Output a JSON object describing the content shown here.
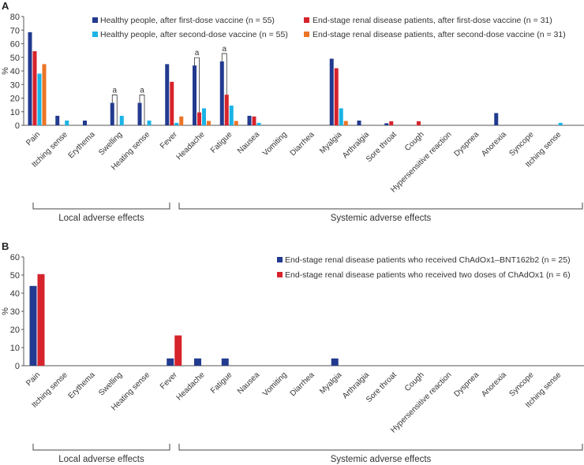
{
  "chart_data": [
    {
      "type": "bar",
      "panel_label": "A",
      "ylabel": "%",
      "ylim": [
        0,
        80
      ],
      "yticks": [
        0,
        10,
        20,
        30,
        40,
        50,
        60,
        70,
        80
      ],
      "categories": [
        "Pain",
        "Itching sense",
        "Erythema",
        "Swelling",
        "Heating sense",
        "Fever",
        "Headache",
        "Fatigue",
        "Nausea",
        "Vomiting",
        "Diarrhea",
        "Myalgia",
        "Arthralgia",
        "Sore throat",
        "Cough",
        "Hypersensitive reaction",
        "Dyspnea",
        "Anorexia",
        "Syncope",
        "Itching sense"
      ],
      "series": [
        {
          "name": "Healthy people, after first-dose vaccine (n = 55)",
          "color": "#223a8f",
          "values": [
            68.5,
            7,
            3.5,
            16.5,
            16.5,
            45,
            44,
            47,
            7,
            0,
            0,
            49,
            3.5,
            1.5,
            0,
            0,
            0,
            9,
            0,
            0
          ]
        },
        {
          "name": "End-stage renal disease patients, after first-dose vaccine (n = 31)",
          "color": "#d7232c",
          "values": [
            54.5,
            0,
            0,
            0,
            0,
            32,
            9.5,
            22.5,
            6.5,
            0,
            0,
            42,
            0,
            3,
            3,
            0,
            0,
            0,
            0,
            0
          ]
        },
        {
          "name": "Healthy people, after second-dose vaccine (n = 55)",
          "color": "#19b3e6",
          "values": [
            38,
            3.5,
            0,
            7,
            3.5,
            1.8,
            12.5,
            14.5,
            1.8,
            0,
            0,
            12.5,
            0,
            0,
            0,
            0,
            0,
            0,
            0,
            1.8
          ]
        },
        {
          "name": "End-stage renal disease patients, after second-dose vaccine (n = 31)",
          "color": "#eb7526",
          "values": [
            45,
            0,
            0,
            0,
            0,
            6.5,
            3.2,
            3.2,
            0,
            0,
            0,
            3.2,
            0,
            0,
            0,
            0,
            0,
            0,
            0,
            0
          ]
        }
      ],
      "legend": {
        "placement": "top",
        "columns": 2
      },
      "annotations": [
        {
          "label": "a",
          "category_index": 3
        },
        {
          "label": "a",
          "category_index": 4
        },
        {
          "label": "a",
          "category_index": 6
        },
        {
          "label": "a",
          "category_index": 7
        }
      ],
      "groups": [
        {
          "label": "Local adverse effects",
          "from": 0,
          "to": 4
        },
        {
          "label": "Systemic adverse effects",
          "from": 5,
          "to": 19
        }
      ]
    },
    {
      "type": "bar",
      "panel_label": "B",
      "ylabel": "%",
      "ylim": [
        0,
        60
      ],
      "yticks": [
        0,
        10,
        20,
        30,
        40,
        50,
        60
      ],
      "categories": [
        "Pain",
        "Itching sense",
        "Erythema",
        "Swelling",
        "Heating sense",
        "Fever",
        "Headache",
        "Fatigue",
        "Nausea",
        "Vomiting",
        "Diarrhea",
        "Myalgia",
        "Arthralgia",
        "Sore throat",
        "Cough",
        "Hypersensitive reaction",
        "Dyspnea",
        "Anorexia",
        "Syncope",
        "Itching sense"
      ],
      "series": [
        {
          "name": "End-stage renal disease patients who received ChAdOx1–BNT162b2 (n = 25)",
          "color": "#223a8f",
          "values": [
            44,
            0,
            0,
            0,
            0,
            4,
            4,
            4,
            0,
            0,
            0,
            4,
            0,
            0,
            0,
            0,
            0,
            0,
            0,
            0
          ]
        },
        {
          "name": "End-stage renal disease patients who received two doses of ChAdOx1 (n = 6)",
          "color": "#d7232c",
          "values": [
            50.5,
            0,
            0,
            0,
            0,
            16.7,
            0,
            0,
            0,
            0,
            0,
            0,
            0,
            0,
            0,
            0,
            0,
            0,
            0,
            0
          ]
        }
      ],
      "legend": {
        "placement": "top-right",
        "columns": 1
      },
      "annotations": [],
      "groups": [
        {
          "label": "Local adverse effects",
          "from": 0,
          "to": 4
        },
        {
          "label": "Systemic adverse effects",
          "from": 5,
          "to": 19
        }
      ]
    }
  ]
}
